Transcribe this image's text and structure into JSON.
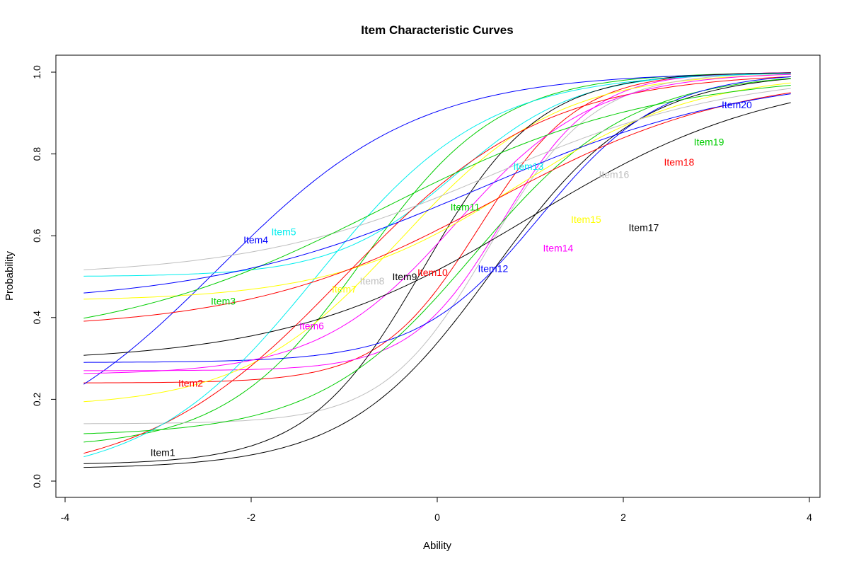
{
  "chart_data": {
    "type": "line",
    "title": "Item Characteristic Curves",
    "xlabel": "Ability",
    "ylabel": "Probability",
    "xlim": [
      -4,
      4
    ],
    "ylim": [
      0,
      1
    ],
    "xticks": [
      "-4",
      "-2",
      "0",
      "2",
      "4"
    ],
    "yticks": [
      "0.0",
      "0.2",
      "0.4",
      "0.6",
      "0.8",
      "1.0"
    ],
    "x_range": [
      -3.8,
      3.8
    ],
    "grid": false,
    "legend": "none",
    "series": [
      {
        "name": "Item1",
        "color": "#000000",
        "label_at": [
          -2.95,
          0.07
        ],
        "params": {
          "c": 0.03,
          "a": 0.75,
          "b": 0.6
        }
      },
      {
        "name": "Item2",
        "color": "#FF0000",
        "label_at": [
          -2.65,
          0.24
        ],
        "params": {
          "c": 0.24,
          "a": 1.1,
          "b": 0.45
        }
      },
      {
        "name": "Item3",
        "color": "#00CD00",
        "label_at": [
          -2.3,
          0.44
        ],
        "params": {
          "c": 0.08,
          "a": 0.8,
          "b": -0.8
        }
      },
      {
        "name": "Item4",
        "color": "#0000FF",
        "label_at": [
          -1.95,
          0.59
        ],
        "params": {
          "c": 0.04,
          "a": 0.55,
          "b": -2.35
        }
      },
      {
        "name": "Item5",
        "color": "#00EEEE",
        "label_at": [
          -1.65,
          0.61
        ],
        "params": {
          "c": 0.5,
          "a": 0.9,
          "b": 0.2
        }
      },
      {
        "name": "Item6",
        "color": "#FF00FF",
        "label_at": [
          -1.35,
          0.38
        ],
        "params": {
          "c": 0.27,
          "a": 1.2,
          "b": 0.7
        }
      },
      {
        "name": "Item7",
        "color": "#FFFF00",
        "label_at": [
          -1.0,
          0.47
        ],
        "params": {
          "c": 0.18,
          "a": 0.7,
          "b": -0.4
        }
      },
      {
        "name": "Item8",
        "color": "#BEBEBE",
        "label_at": [
          -0.7,
          0.49
        ],
        "params": {
          "c": 0.14,
          "a": 1.05,
          "b": 0.55
        }
      },
      {
        "name": "Item9",
        "color": "#000000",
        "label_at": [
          -0.35,
          0.5
        ],
        "params": {
          "c": 0.04,
          "a": 0.95,
          "b": -0.15
        }
      },
      {
        "name": "Item10",
        "color": "#FF0000",
        "label_at": [
          -0.05,
          0.51
        ],
        "params": {
          "c": 0.0,
          "a": 0.55,
          "b": -1.0
        }
      },
      {
        "name": "Item11",
        "color": "#00CD00",
        "label_at": [
          0.3,
          0.67
        ],
        "params": {
          "c": 0.11,
          "a": 0.7,
          "b": 0.4
        }
      },
      {
        "name": "Item12",
        "color": "#0000FF",
        "label_at": [
          0.6,
          0.52
        ],
        "params": {
          "c": 0.29,
          "a": 0.9,
          "b": 1.1
        }
      },
      {
        "name": "Item13",
        "color": "#00EEEE",
        "label_at": [
          0.98,
          0.77
        ],
        "params": {
          "c": 0.0,
          "a": 0.65,
          "b": -1.3
        }
      },
      {
        "name": "Item14",
        "color": "#FF00FF",
        "label_at": [
          1.3,
          0.57
        ],
        "params": {
          "c": 0.26,
          "a": 0.8,
          "b": 0.2
        }
      },
      {
        "name": "Item15",
        "color": "#FFFF00",
        "label_at": [
          1.6,
          0.64
        ],
        "params": {
          "c": 0.44,
          "a": 0.6,
          "b": 0.85
        }
      },
      {
        "name": "Item16",
        "color": "#BEBEBE",
        "label_at": [
          1.9,
          0.75
        ],
        "params": {
          "c": 0.5,
          "a": 0.45,
          "b": 0.6
        }
      },
      {
        "name": "Item17",
        "color": "#000000",
        "label_at": [
          2.22,
          0.62
        ],
        "params": {
          "c": 0.29,
          "a": 0.45,
          "b": 1.0
        }
      },
      {
        "name": "Item18",
        "color": "#FF0000",
        "label_at": [
          2.6,
          0.78
        ],
        "params": {
          "c": 0.37,
          "a": 0.45,
          "b": 0.6
        }
      },
      {
        "name": "Item19",
        "color": "#00CD00",
        "label_at": [
          2.92,
          0.83
        ],
        "params": {
          "c": 0.33,
          "a": 0.4,
          "b": -0.6
        }
      },
      {
        "name": "Item20",
        "color": "#0000FF",
        "label_at": [
          3.22,
          0.92
        ],
        "params": {
          "c": 0.43,
          "a": 0.4,
          "b": 0.45
        }
      }
    ]
  }
}
